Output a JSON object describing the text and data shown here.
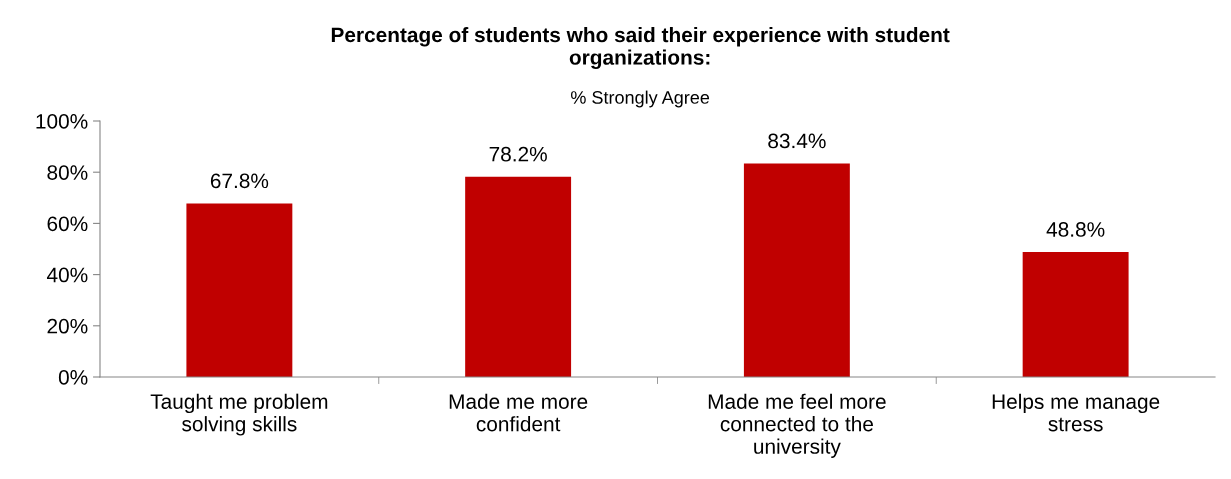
{
  "chart_data": {
    "type": "bar",
    "title": "Percentage of students who said their experience with student organizations:",
    "subtitle": "% Strongly Agree",
    "categories": [
      "Taught me problem solving skills",
      "Made me more confident",
      "Made me feel more connected to the university",
      "Helps me manage stress"
    ],
    "values": [
      67.8,
      78.2,
      83.4,
      48.8
    ],
    "value_labels": [
      "67.8%",
      "78.2%",
      "83.4%",
      "48.8%"
    ],
    "color": "#c00000",
    "ylim": [
      0,
      100
    ],
    "yticks": [
      {
        "value": 0,
        "label": "0%"
      },
      {
        "value": 20,
        "label": "20%"
      },
      {
        "value": 40,
        "label": "40%"
      },
      {
        "value": 60,
        "label": "60%"
      },
      {
        "value": 80,
        "label": "80%"
      },
      {
        "value": 100,
        "label": "100%"
      }
    ],
    "grid": false,
    "legend": false
  }
}
